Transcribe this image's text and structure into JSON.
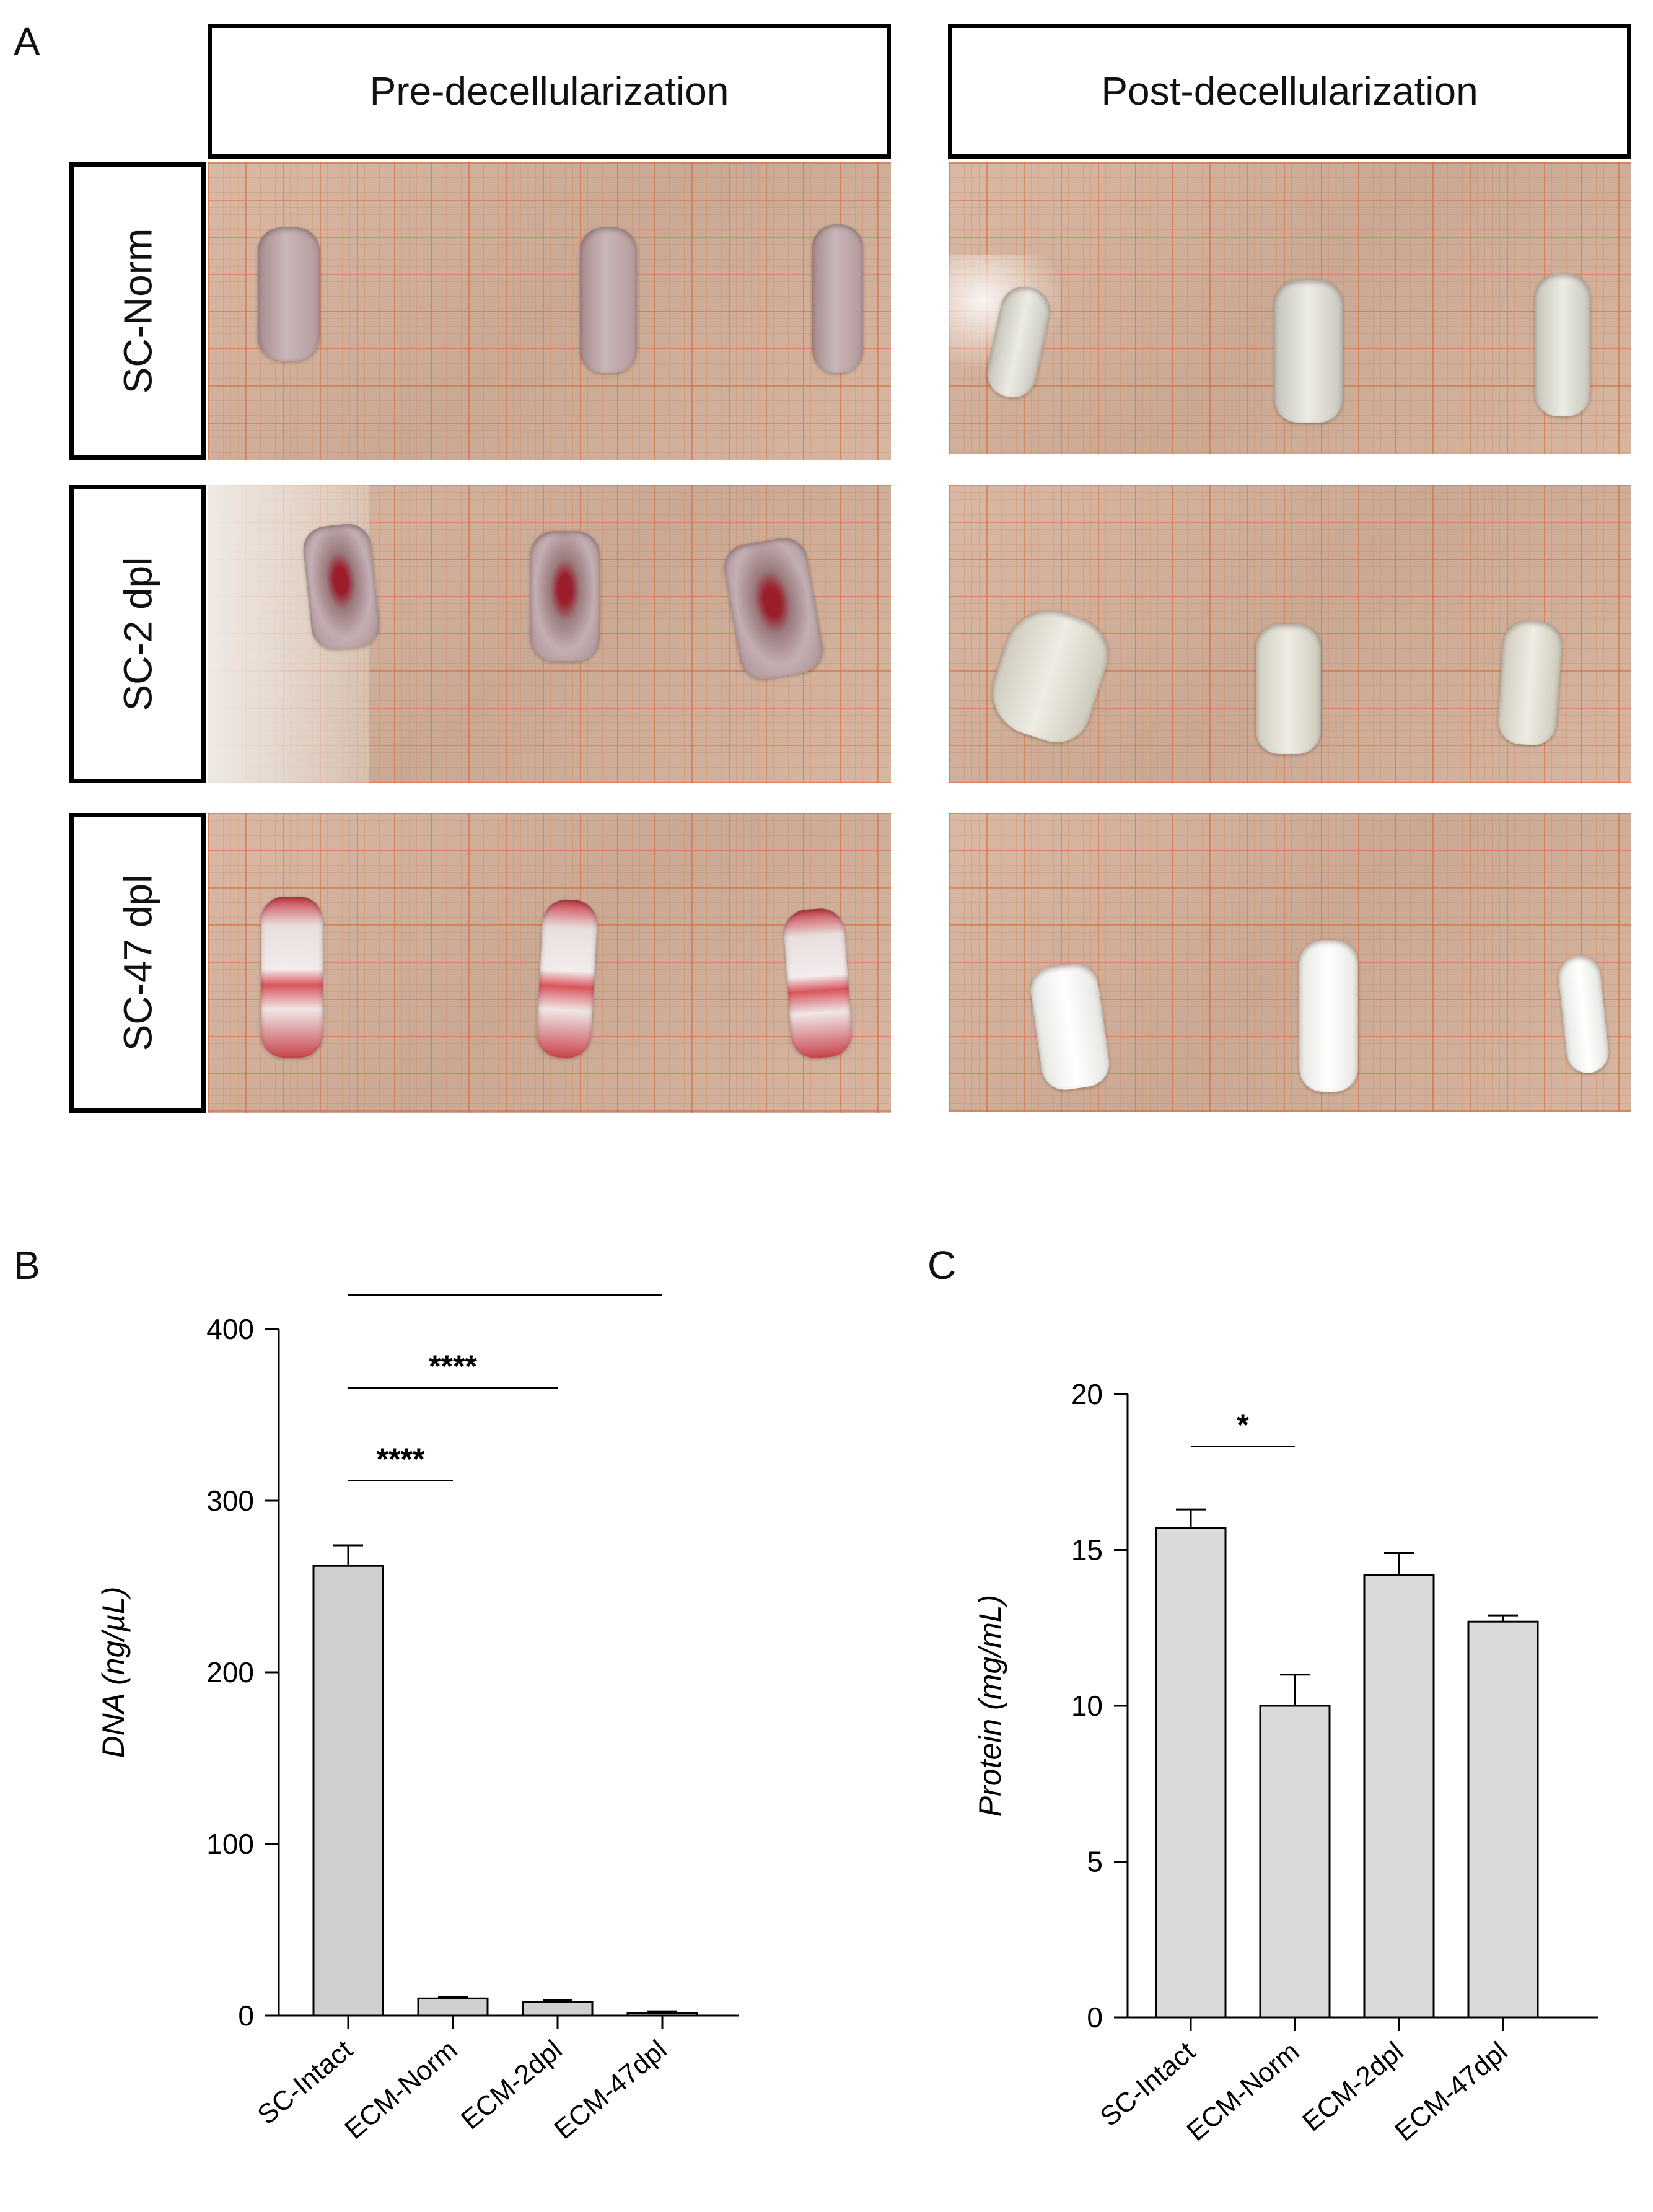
{
  "panels": {
    "a": {
      "letter": "A"
    },
    "b": {
      "letter": "B"
    },
    "c": {
      "letter": "C"
    }
  },
  "headers": {
    "pre": "Pre-decellularization",
    "post": "Post-decellularization"
  },
  "rows": [
    "SC-Norm",
    "SC-2 dpl",
    "SC-47 dpl"
  ],
  "colors": {
    "bar_fill": "#d0d0d0",
    "bar_fill_c": "#dadada",
    "axis": "#000000"
  },
  "chart_data": [
    {
      "type": "bar",
      "panel": "B",
      "categories": [
        "SC-Intact",
        "ECM-Norm",
        "ECM-2dpl",
        "ECM-47dpl"
      ],
      "values": [
        262,
        10,
        8,
        1.5
      ],
      "errors": [
        12,
        1,
        1,
        1
      ],
      "ylabel_main": "DNA",
      "ylabel_unit": "(ng/µL)",
      "ylim": [
        0,
        400
      ],
      "yticks": [
        0,
        100,
        200,
        300,
        400
      ],
      "grid": false,
      "significance": [
        {
          "from": 0,
          "to": 1,
          "label": "****"
        },
        {
          "from": 0,
          "to": 2,
          "label": "****"
        },
        {
          "from": 0,
          "to": 3,
          "label": "****"
        }
      ]
    },
    {
      "type": "bar",
      "panel": "C",
      "categories": [
        "SC-Intact",
        "ECM-Norm",
        "ECM-2dpl",
        "ECM-47dpl"
      ],
      "values": [
        15.7,
        10.0,
        14.2,
        12.7
      ],
      "errors": [
        0.6,
        1.0,
        0.7,
        0.2
      ],
      "ylabel_main": "Protein",
      "ylabel_unit": "(mg/mL)",
      "ylim": [
        0,
        20
      ],
      "yticks": [
        0,
        5,
        10,
        15,
        20
      ],
      "grid": false,
      "significance": [
        {
          "from": 0,
          "to": 1,
          "label": "*"
        }
      ]
    }
  ]
}
